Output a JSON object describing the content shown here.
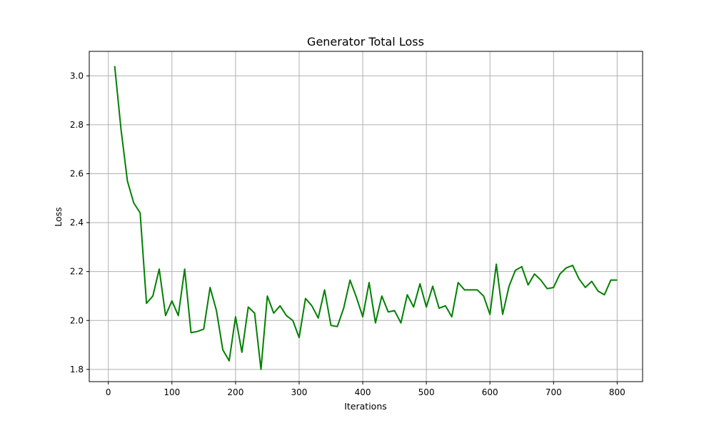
{
  "chart_data": {
    "type": "line",
    "title": "Generator Total Loss",
    "xlabel": "Iterations",
    "ylabel": "Loss",
    "xlim": [
      -30,
      840
    ],
    "ylim": [
      1.75,
      3.1
    ],
    "xticks": [
      0,
      100,
      200,
      300,
      400,
      500,
      600,
      700,
      800
    ],
    "yticks": [
      1.8,
      2.0,
      2.2,
      2.4,
      2.6,
      2.8,
      3.0
    ],
    "xtick_labels": [
      "0",
      "100",
      "200",
      "300",
      "400",
      "500",
      "600",
      "700",
      "800"
    ],
    "ytick_labels": [
      "1.8",
      "2.0",
      "2.2",
      "2.4",
      "2.6",
      "2.8",
      "3.0"
    ],
    "grid": true,
    "color": "#008000",
    "x": [
      10,
      20,
      30,
      40,
      50,
      60,
      70,
      80,
      90,
      100,
      110,
      120,
      130,
      140,
      150,
      160,
      170,
      180,
      190,
      200,
      210,
      220,
      230,
      240,
      250,
      260,
      270,
      280,
      290,
      300,
      310,
      320,
      330,
      340,
      350,
      360,
      370,
      380,
      390,
      400,
      410,
      420,
      430,
      440,
      450,
      460,
      470,
      480,
      490,
      500,
      510,
      520,
      530,
      540,
      550,
      560,
      570,
      580,
      590,
      600,
      610,
      620,
      630,
      640,
      650,
      660,
      670,
      680,
      690,
      700,
      710,
      720,
      730,
      740,
      750,
      760,
      770,
      780,
      790,
      800
    ],
    "y": [
      3.04,
      2.78,
      2.57,
      2.48,
      2.44,
      2.07,
      2.1,
      2.21,
      2.02,
      2.08,
      2.02,
      2.21,
      1.95,
      1.955,
      1.965,
      2.135,
      2.04,
      1.88,
      1.835,
      2.015,
      1.87,
      2.055,
      2.03,
      1.8,
      2.1,
      2.03,
      2.06,
      2.02,
      2.0,
      1.93,
      2.09,
      2.06,
      2.01,
      2.125,
      1.98,
      1.975,
      2.05,
      2.165,
      2.095,
      2.015,
      2.155,
      1.99,
      2.1,
      2.035,
      2.04,
      1.99,
      2.105,
      2.055,
      2.15,
      2.055,
      2.14,
      2.05,
      2.06,
      2.015,
      2.155,
      2.125,
      2.125,
      2.125,
      2.1,
      2.025,
      2.23,
      2.025,
      2.14,
      2.205,
      2.22,
      2.145,
      2.19,
      2.165,
      2.13,
      2.135,
      2.19,
      2.215,
      2.225,
      2.17,
      2.135,
      2.16,
      2.12,
      2.105,
      2.165,
      2.165
    ]
  }
}
